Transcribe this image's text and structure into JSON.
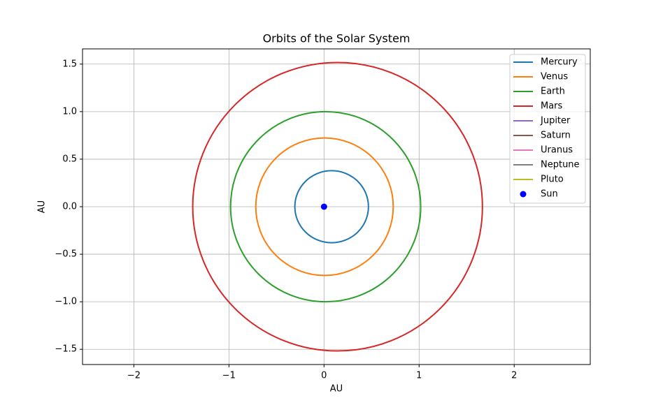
{
  "chart_data": {
    "type": "orbit",
    "title": "Orbits of the Solar System",
    "x_label": "AU",
    "y_label": "AU",
    "xlim": [
      -2.54,
      2.8
    ],
    "ylim": [
      -1.66,
      1.66
    ],
    "xticks": [
      {
        "value": -2,
        "label": "−2"
      },
      {
        "value": -1,
        "label": "−1"
      },
      0,
      1,
      2
    ],
    "yticks": [
      {
        "value": -1.5,
        "label": "−1.5"
      },
      {
        "value": -1,
        "label": "−1.0"
      },
      {
        "value": -0.5,
        "label": "−0.5"
      },
      {
        "value": 0,
        "label": "0.0"
      },
      0.5,
      {
        "value": 1,
        "label": "1.0"
      },
      1.5
    ],
    "grid": true,
    "legend": "upper right",
    "series": [
      {
        "name": "Mercury",
        "color": "#1f77b4",
        "x": [
          -0.307,
          0.467
        ],
        "y": [
          -0.379,
          0.379
        ]
      },
      {
        "name": "Venus",
        "color": "#ff7f0e",
        "x": [
          -0.718,
          0.728
        ],
        "y": [
          -0.723,
          0.723
        ]
      },
      {
        "name": "Earth",
        "color": "#2ca02c",
        "x": [
          -0.983,
          1.017
        ],
        "y": [
          -1.0,
          1.0
        ]
      },
      {
        "name": "Mars",
        "color": "#d62728",
        "x": [
          -1.381,
          1.666
        ],
        "y": [
          -1.517,
          1.517
        ]
      },
      {
        "name": "Jupiter",
        "color": "#9467bd"
      },
      {
        "name": "Saturn",
        "color": "#8c564b"
      },
      {
        "name": "Uranus",
        "color": "#e377c2"
      },
      {
        "name": "Neptune",
        "color": "#7f7f7f"
      },
      {
        "name": "Pluto",
        "color": "#bcbd22"
      }
    ],
    "sun": {
      "name": "Sun",
      "color": "#0000ff",
      "x": 0,
      "y": 0
    }
  }
}
